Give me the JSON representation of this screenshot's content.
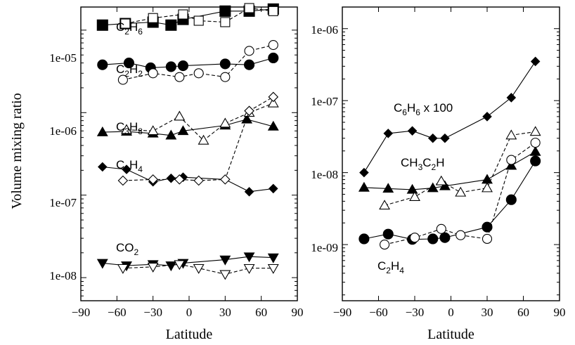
{
  "chart_data": [
    {
      "type": "line",
      "ylabel": "Volume mixing ratio",
      "xlabel": "Latitude",
      "xlim": [
        -90,
        90
      ],
      "ylim_log10": [
        -8.28,
        -4.72
      ],
      "y_scale": "log",
      "x_ticks": [
        "−90",
        "−60",
        "−30",
        "0",
        "30",
        "60",
        "90"
      ],
      "y_ticks": [
        "1e-08",
        "1e-07",
        "1e-06",
        "1e-05"
      ],
      "annotations": [
        {
          "base": "C",
          "sub1": "2",
          "mid": "H",
          "sub2": "6",
          "suffix": ""
        },
        {
          "base": "C",
          "sub1": "2",
          "mid": "H",
          "sub2": "2",
          "suffix": ""
        },
        {
          "base": "C",
          "sub1": "3",
          "mid": "H",
          "sub2": "8",
          "suffix": ""
        },
        {
          "base": "C",
          "sub1": "2",
          "mid": "H",
          "sub2": "4",
          "suffix": ""
        },
        {
          "base": "CO",
          "sub1": "2",
          "mid": "",
          "sub2": "",
          "suffix": ""
        }
      ],
      "series": [
        {
          "marker": "square-filled",
          "style": "solid",
          "x": [
            -72,
            -53,
            -30,
            -15,
            -5,
            30,
            50,
            70
          ],
          "y": [
            1.15e-05,
            1.2e-05,
            1.25e-05,
            1.15e-05,
            1.35e-05,
            1.7e-05,
            1.7e-05,
            1.8e-05
          ]
        },
        {
          "marker": "square-open",
          "style": "dashed",
          "x": [
            -53,
            -30,
            -5,
            8,
            30,
            50,
            70
          ],
          "y": [
            1.2e-05,
            1.4e-05,
            1.55e-05,
            1.3e-05,
            1.25e-05,
            1.85e-05,
            1.7e-05
          ]
        },
        {
          "marker": "circle-filled",
          "style": "solid",
          "x": [
            -72,
            -50,
            -32,
            -15,
            -5,
            30,
            50,
            70
          ],
          "y": [
            3.8e-06,
            4e-06,
            3.5e-06,
            3.6e-06,
            3.7e-06,
            3.9e-06,
            3.8e-06,
            4.6e-06
          ]
        },
        {
          "marker": "circle-open",
          "style": "dashed",
          "x": [
            -55,
            -30,
            -8,
            8,
            30,
            50,
            70
          ],
          "y": [
            2.5e-06,
            3e-06,
            2.7e-06,
            3e-06,
            2.7e-06,
            5.6e-06,
            6.6e-06
          ]
        },
        {
          "marker": "triangle-up-filled",
          "style": "solid",
          "x": [
            -72,
            -52,
            -30,
            -15,
            -5,
            30,
            48,
            70
          ],
          "y": [
            5.8e-07,
            5.9e-07,
            5.6e-07,
            5.3e-07,
            6e-07,
            7e-07,
            8.3e-07,
            6.8e-07
          ]
        },
        {
          "marker": "triangle-up-open",
          "style": "dashed",
          "x": [
            -52,
            -30,
            -8,
            12,
            30,
            50,
            70
          ],
          "y": [
            6.2e-07,
            6e-07,
            9e-07,
            4.6e-07,
            7.4e-07,
            1e-06,
            1.3e-06
          ]
        },
        {
          "marker": "diamond-filled",
          "style": "solid",
          "x": [
            -72,
            -52,
            -30,
            -15,
            -5,
            30,
            50,
            70
          ],
          "y": [
            2.2e-07,
            2.05e-07,
            1.45e-07,
            1.6e-07,
            1.65e-07,
            1.55e-07,
            1.1e-07,
            1.2e-07
          ]
        },
        {
          "marker": "diamond-open",
          "style": "dashed",
          "x": [
            -55,
            -30,
            -8,
            8,
            30,
            50,
            70
          ],
          "y": [
            1.5e-07,
            1.55e-07,
            1.55e-07,
            1.5e-07,
            1.55e-07,
            1.05e-06,
            1.55e-06
          ]
        },
        {
          "marker": "triangle-down-filled",
          "style": "solid",
          "x": [
            -72,
            -52,
            -30,
            -15,
            -5,
            30,
            50,
            70
          ],
          "y": [
            1.5e-08,
            1.4e-08,
            1.45e-08,
            1.4e-08,
            1.5e-08,
            1.65e-08,
            1.8e-08,
            1.75e-08
          ]
        },
        {
          "marker": "triangle-down-open",
          "style": "dashed",
          "x": [
            -55,
            -30,
            -8,
            8,
            30,
            50,
            70
          ],
          "y": [
            1.3e-08,
            1.35e-08,
            1.45e-08,
            1.3e-08,
            1.1e-08,
            1.3e-08,
            1.3e-08
          ]
        }
      ]
    },
    {
      "type": "line",
      "ylabel": "",
      "xlabel": "Latitude",
      "xlim": [
        -90,
        90
      ],
      "ylim_log10": [
        -9.78,
        -5.7
      ],
      "y_scale": "log",
      "x_ticks": [
        "−90",
        "−60",
        "−30",
        "0",
        "30",
        "60",
        "90"
      ],
      "y_ticks": [
        "1e-09",
        "1e-08",
        "1e-07",
        "1e-06"
      ],
      "annotations": [
        {
          "base": "C",
          "sub1": "6",
          "mid": "H",
          "sub2": "6",
          "suffix": " x 100"
        },
        {
          "base": "CH",
          "sub1": "3",
          "mid": "C",
          "sub2": "2",
          "suffix": "H"
        },
        {
          "base": "C",
          "sub1": "2",
          "mid": "H",
          "sub2": "4",
          "suffix": ""
        }
      ],
      "series": [
        {
          "marker": "diamond-filled",
          "style": "solid",
          "x": [
            -72,
            -52,
            -32,
            -15,
            -5,
            30,
            50,
            70
          ],
          "y": [
            1e-08,
            3.5e-08,
            3.8e-08,
            3e-08,
            3e-08,
            6e-08,
            1.1e-07,
            3.5e-07
          ]
        },
        {
          "marker": "triangle-up-filled",
          "style": "solid",
          "x": [
            -72,
            -52,
            -32,
            -15,
            -5,
            30,
            50,
            70
          ],
          "y": [
            6.2e-09,
            6e-09,
            5.8e-09,
            6.1e-09,
            6.5e-09,
            8e-09,
            1.25e-08,
            1.95e-08
          ]
        },
        {
          "marker": "triangle-up-open",
          "style": "dashed",
          "x": [
            -55,
            -30,
            -8,
            8,
            30,
            50,
            70
          ],
          "y": [
            3.5e-09,
            4.6e-09,
            7.6e-09,
            5.3e-09,
            6.1e-09,
            3.3e-08,
            3.7e-08
          ]
        },
        {
          "marker": "circle-filled",
          "style": "solid",
          "x": [
            -72,
            -52,
            -32,
            -15,
            -5,
            30,
            50,
            70
          ],
          "y": [
            1.2e-09,
            1.4e-09,
            1.18e-09,
            1.2e-09,
            1.25e-09,
            1.75e-09,
            4.2e-09,
            1.45e-08
          ]
        },
        {
          "marker": "circle-open",
          "style": "dashed",
          "x": [
            -55,
            -30,
            -8,
            8,
            30,
            50,
            70
          ],
          "y": [
            1e-09,
            1.25e-09,
            1.65e-09,
            1.35e-09,
            1.2e-09,
            1.5e-08,
            2.6e-08
          ]
        }
      ]
    }
  ]
}
